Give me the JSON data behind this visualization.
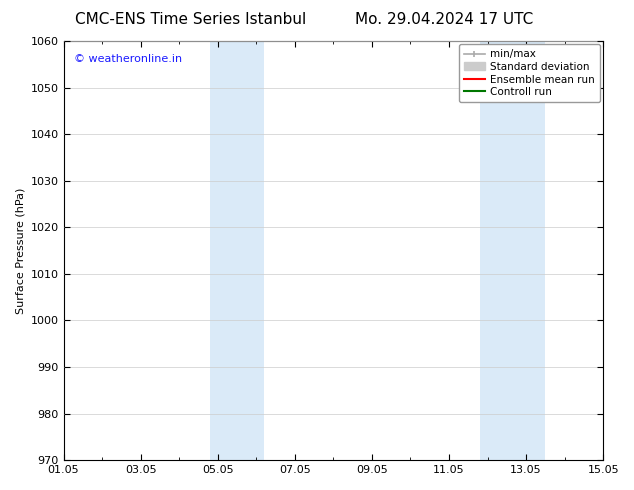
{
  "title_left": "CMC-ENS Time Series Istanbul",
  "title_right": "Mo. 29.04.2024 17 UTC",
  "ylabel": "Surface Pressure (hPa)",
  "ylim": [
    970,
    1060
  ],
  "yticks": [
    970,
    980,
    990,
    1000,
    1010,
    1020,
    1030,
    1040,
    1050,
    1060
  ],
  "xtick_labels": [
    "01.05",
    "03.05",
    "05.05",
    "07.05",
    "09.05",
    "11.05",
    "13.05",
    "15.05"
  ],
  "xtick_positions": [
    0,
    2,
    4,
    6,
    8,
    10,
    12,
    14
  ],
  "xlim": [
    0,
    14
  ],
  "shaded_regions": [
    {
      "x_start": 3.8,
      "x_end": 5.2
    },
    {
      "x_start": 10.8,
      "x_end": 12.5
    }
  ],
  "shade_color": "#daeaf8",
  "background_color": "#ffffff",
  "watermark_text": "© weatheronline.in",
  "watermark_color": "#1a1aff",
  "legend_items": [
    {
      "label": "min/max",
      "color": "#aaaaaa",
      "lw": 1.2
    },
    {
      "label": "Standard deviation",
      "color": "#cccccc",
      "lw": 6
    },
    {
      "label": "Ensemble mean run",
      "color": "#ff0000",
      "lw": 1.5
    },
    {
      "label": "Controll run",
      "color": "#007700",
      "lw": 1.5
    }
  ],
  "title_fontsize": 11,
  "axis_fontsize": 8,
  "tick_fontsize": 8,
  "legend_fontsize": 7.5
}
